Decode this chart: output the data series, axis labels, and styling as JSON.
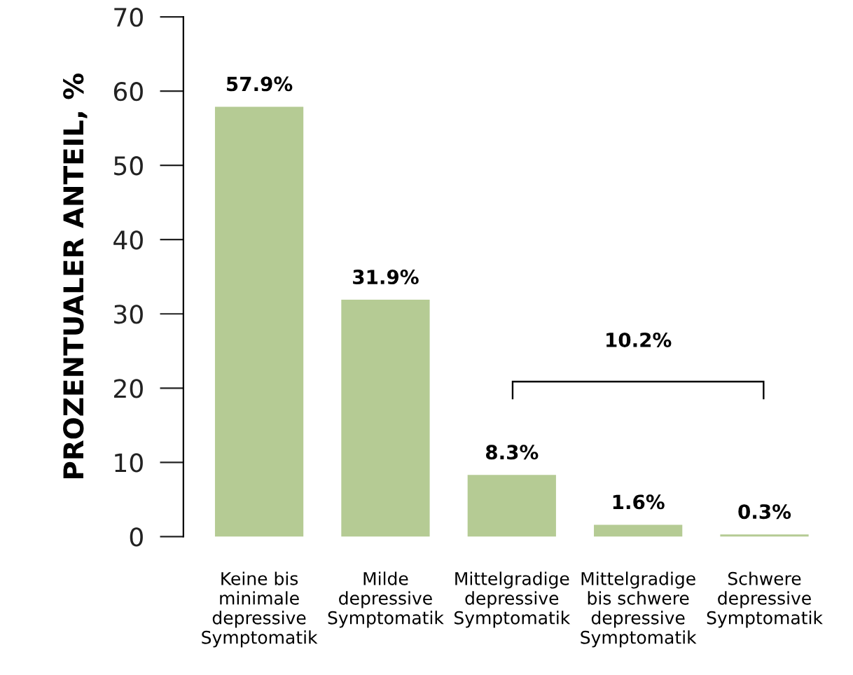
{
  "chart_data": {
    "type": "bar",
    "ylabel": "PROZENTUALER ANTEIL, %",
    "categories": [
      "Keine bis\nminimale\ndepressive\nSymptomatik",
      "Milde\ndepressive\nSymptomatik",
      "Mittelgradige\ndepressive\nSymptomatik",
      "Mittelgradige\nbis schwere\ndepressive\nSymptomatik",
      "Schwere\ndepressive\nSymptomatik"
    ],
    "values": [
      57.9,
      31.9,
      8.3,
      1.6,
      0.3
    ],
    "value_labels": [
      "57.9%",
      "31.9%",
      "8.3%",
      "1.6%",
      "0.3%"
    ],
    "color": "#b5cb94",
    "ylim": [
      0,
      70
    ],
    "yticks": [
      0,
      10,
      20,
      30,
      40,
      50,
      60,
      70
    ],
    "grid": false,
    "annotations": [
      "10.2%"
    ]
  }
}
